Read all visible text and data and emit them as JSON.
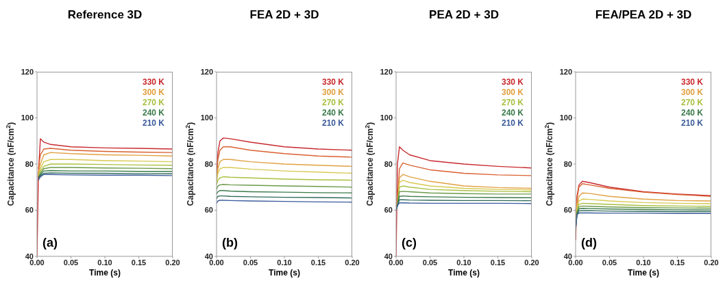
{
  "chart_data": [
    {
      "type": "line",
      "title": "Reference 3D",
      "xlabel": "Time (s)",
      "ylabel": "Capacitance (nF/cm$^{2}$)",
      "legend": "top right",
      "marker": "none",
      "line_style": "solid",
      "annotations": [
        "(a)"
      ],
      "xlim": [
        0,
        0.2
      ],
      "ylim": [
        40,
        120
      ],
      "xticks": [
        {
          "value": 0,
          "label": "0.00"
        },
        {
          "value": 0.05,
          "label": "0.05"
        },
        {
          "value": 0.1,
          "label": "0.10"
        },
        {
          "value": 0.15,
          "label": "0.15"
        },
        {
          "value": 0.2,
          "label": "0.20"
        }
      ],
      "yticks": [
        40,
        60,
        80,
        100,
        120
      ],
      "x": [
        0,
        0.002,
        0.005,
        0.01,
        0.02,
        0.05,
        0.1,
        0.15,
        0.2
      ],
      "series": [
        {
          "name": "330 K",
          "color": "#c8282d",
          "values": [
            40,
            75,
            91,
            89.5,
            88.5,
            87.5,
            87,
            86.8,
            86.5
          ]
        },
        {
          "color": "#d9602f",
          "values": [
            null,
            78,
            84,
            86.5,
            86.8,
            86,
            85.5,
            85.2,
            85
          ]
        },
        {
          "name": "300 K",
          "color": "#e0a040",
          "values": [
            null,
            76,
            80,
            84,
            85,
            84.5,
            84,
            83.8,
            83.5
          ]
        },
        {
          "color": "#d8c850",
          "values": [
            null,
            75,
            78,
            81,
            82,
            82,
            81.5,
            81.3,
            81
          ]
        },
        {
          "name": "270 K",
          "color": "#a8c040",
          "values": [
            null,
            75,
            77,
            79,
            80,
            80,
            79.8,
            79.6,
            79.5
          ]
        },
        {
          "color": "#6a9a48",
          "values": [
            null,
            74,
            76,
            78,
            78.5,
            78.5,
            78.3,
            78.2,
            78
          ]
        },
        {
          "name": "240 K",
          "color": "#3a7a4a",
          "values": [
            null,
            74,
            75.5,
            77,
            77.2,
            77,
            77,
            76.8,
            76.8
          ]
        },
        {
          "color": "#2e6a5a",
          "values": [
            null,
            74,
            75,
            76,
            76.2,
            76,
            76,
            75.8,
            75.8
          ]
        },
        {
          "name": "210 K",
          "color": "#3a5a9a",
          "values": [
            null,
            73,
            74.5,
            75.5,
            75.5,
            75.3,
            75.2,
            75.2,
            75
          ]
        }
      ]
    },
    {
      "type": "line",
      "title": "FEA 2D + 3D",
      "xlabel": "Time (s)",
      "ylabel": "Capacitance (nF/cm$^{2}$)",
      "legend": "top right",
      "marker": "none",
      "line_style": "solid",
      "annotations": [
        "(b)"
      ],
      "xlim": [
        0,
        0.2
      ],
      "ylim": [
        40,
        120
      ],
      "xticks": [
        {
          "value": 0,
          "label": "0.00"
        },
        {
          "value": 0.05,
          "label": "0.05"
        },
        {
          "value": 0.1,
          "label": "0.10"
        },
        {
          "value": 0.15,
          "label": "0.15"
        },
        {
          "value": 0.2,
          "label": "0.20"
        }
      ],
      "yticks": [
        40,
        60,
        80,
        100,
        120
      ],
      "x": [
        0,
        0.002,
        0.005,
        0.01,
        0.02,
        0.05,
        0.1,
        0.15,
        0.2
      ],
      "series": [
        {
          "name": "330 K",
          "color": "#c8282d",
          "values": [
            75,
            85,
            90,
            91.3,
            91,
            89.5,
            87.5,
            86.5,
            86
          ]
        },
        {
          "color": "#d9602f",
          "values": [
            74,
            82,
            86,
            87.5,
            87.5,
            86,
            84.5,
            83.5,
            83
          ]
        },
        {
          "name": "300 K",
          "color": "#e0a040",
          "values": [
            73,
            78,
            81,
            82,
            82,
            81,
            80,
            79.5,
            79
          ]
        },
        {
          "color": "#d8c850",
          "values": [
            72,
            76,
            78,
            78.5,
            78.5,
            77.8,
            77,
            76.5,
            76
          ]
        },
        {
          "name": "270 K",
          "color": "#a8c040",
          "values": [
            71,
            73,
            74,
            74.5,
            74.3,
            74,
            73.5,
            73.2,
            73
          ]
        },
        {
          "color": "#6a9a48",
          "values": [
            69,
            70.5,
            71,
            71.2,
            71,
            70.8,
            70.5,
            70.3,
            70
          ]
        },
        {
          "name": "240 K",
          "color": "#3a7a4a",
          "values": [
            67,
            68,
            68.5,
            68.5,
            68.3,
            68,
            67.8,
            67.6,
            67.5
          ]
        },
        {
          "color": "#2e6a5a",
          "values": [
            65,
            66,
            66.2,
            66.2,
            66,
            65.8,
            65.6,
            65.5,
            65.3
          ]
        },
        {
          "name": "210 K",
          "color": "#3a5a9a",
          "values": [
            63,
            64,
            64.3,
            64.3,
            64.2,
            64,
            63.8,
            63.6,
            63.5
          ]
        }
      ]
    },
    {
      "type": "line",
      "title": "PEA 2D + 3D",
      "xlabel": "Time (s)",
      "ylabel": "Capacitance (nF/cm$^{2}$)",
      "legend": "top right",
      "marker": "none",
      "line_style": "solid",
      "annotations": [
        "(c)"
      ],
      "xlim": [
        0,
        0.2
      ],
      "ylim": [
        40,
        120
      ],
      "xticks": [
        {
          "value": 0,
          "label": "0.00"
        },
        {
          "value": 0.05,
          "label": "0.05"
        },
        {
          "value": 0.1,
          "label": "0.10"
        },
        {
          "value": 0.15,
          "label": "0.15"
        },
        {
          "value": 0.2,
          "label": "0.20"
        }
      ],
      "yticks": [
        40,
        60,
        80,
        100,
        120
      ],
      "x": [
        0,
        0.002,
        0.005,
        0.01,
        0.02,
        0.05,
        0.1,
        0.15,
        0.2
      ],
      "series": [
        {
          "name": "330 K",
          "color": "#c8282d",
          "values": [
            40,
            80,
            87.5,
            86,
            84,
            81.5,
            80,
            79,
            78.3
          ]
        },
        {
          "color": "#d9602f",
          "values": [
            60,
            65,
            78,
            80.5,
            79.5,
            77.5,
            76,
            75.3,
            75
          ]
        },
        {
          "name": "300 K",
          "color": "#e0a040",
          "values": [
            60,
            62,
            74,
            75.5,
            74.5,
            72.5,
            70.5,
            69.8,
            69.5
          ]
        },
        {
          "color": "#d8c850",
          "values": [
            60,
            62,
            72,
            73,
            72,
            70.5,
            69.5,
            69,
            68.8
          ]
        },
        {
          "name": "270 K",
          "color": "#a8c040",
          "values": [
            60,
            62,
            70,
            70.5,
            70,
            69,
            68.5,
            68.2,
            68
          ]
        },
        {
          "color": "#6a9a48",
          "values": [
            60,
            62,
            68,
            68.2,
            68,
            67.5,
            67.2,
            67,
            67
          ]
        },
        {
          "name": "240 K",
          "color": "#3a7a4a",
          "values": [
            60,
            62,
            66,
            66.2,
            66,
            65.8,
            65.6,
            65.5,
            65.4
          ]
        },
        {
          "color": "#2e6a5a",
          "values": [
            60,
            62,
            64.5,
            64.5,
            64.4,
            64.3,
            64.2,
            64.2,
            64.1
          ]
        },
        {
          "name": "210 K",
          "color": "#3a5a9a",
          "values": [
            60,
            62,
            63.2,
            63.2,
            63.1,
            63,
            63,
            63,
            62.9
          ]
        }
      ]
    },
    {
      "type": "line",
      "title": "FEA/PEA 2D + 3D",
      "xlabel": "Time (s)",
      "ylabel": "Capacitance (nF/cm$^{2}$)",
      "legend": "top right",
      "marker": "none",
      "line_style": "solid",
      "annotations": [
        "(d)"
      ],
      "xlim": [
        0,
        0.2
      ],
      "ylim": [
        40,
        120
      ],
      "xticks": [
        {
          "value": 0,
          "label": "0.00"
        },
        {
          "value": 0.05,
          "label": "0.05"
        },
        {
          "value": 0.1,
          "label": "0.10"
        },
        {
          "value": 0.15,
          "label": "0.15"
        },
        {
          "value": 0.2,
          "label": "0.20"
        }
      ],
      "yticks": [
        40,
        60,
        80,
        100,
        120
      ],
      "x": [
        0,
        0.002,
        0.005,
        0.01,
        0.02,
        0.05,
        0.1,
        0.15,
        0.2
      ],
      "series": [
        {
          "name": "330 K",
          "color": "#c8282d",
          "values": [
            47,
            66,
            71,
            72.5,
            72,
            70,
            68,
            67,
            66.3
          ]
        },
        {
          "color": "#d9602f",
          "values": [
            50,
            65,
            70,
            71.5,
            71,
            69.5,
            67.8,
            66.8,
            66
          ]
        },
        {
          "name": "300 K",
          "color": "#e0a040",
          "values": [
            52,
            62,
            66,
            67.5,
            67.3,
            66,
            64.8,
            64.2,
            64
          ]
        },
        {
          "color": "#d8c850",
          "values": [
            52,
            61,
            64,
            64.8,
            64.7,
            64,
            63.3,
            63,
            62.8
          ]
        },
        {
          "name": "270 K",
          "color": "#a8c040",
          "values": [
            52,
            60,
            62.5,
            63,
            62.9,
            62.5,
            62,
            61.8,
            61.7
          ]
        },
        {
          "color": "#6a9a48",
          "values": [
            52,
            59,
            61.5,
            61.8,
            61.7,
            61.4,
            61.1,
            61,
            60.9
          ]
        },
        {
          "name": "240 K",
          "color": "#3a7a4a",
          "values": [
            52,
            58.5,
            60.6,
            60.8,
            60.7,
            60.5,
            60.3,
            60.2,
            60.1
          ]
        },
        {
          "color": "#2e6a5a",
          "values": [
            52,
            58,
            59.7,
            59.8,
            59.8,
            59.6,
            59.5,
            59.4,
            59.4
          ]
        },
        {
          "name": "210 K",
          "color": "#3a5a9a",
          "values": [
            52,
            58,
            58.8,
            58.8,
            58.8,
            58.7,
            58.7,
            58.6,
            58.6
          ]
        }
      ]
    }
  ]
}
